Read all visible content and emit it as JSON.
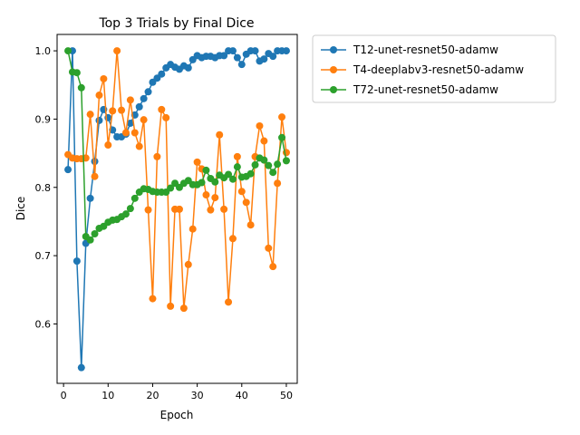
{
  "chart_data": {
    "type": "line",
    "title": "Top 3 Trials by Final Dice",
    "xlabel": "Epoch",
    "ylabel": "Dice",
    "xlim": [
      -1.45,
      52.45
    ],
    "ylim": [
      0.513,
      1.024
    ],
    "xticks": [
      0,
      10,
      20,
      30,
      40,
      50
    ],
    "yticks": [
      0.6,
      0.7,
      0.8,
      0.9,
      1.0
    ],
    "xtick_labels": [
      "0",
      "10",
      "20",
      "30",
      "40",
      "50"
    ],
    "ytick_labels": [
      "0.6",
      "0.7",
      "0.8",
      "0.9",
      "1.0"
    ],
    "grid": false,
    "legend_position": "outside upper right",
    "x": [
      1,
      2,
      3,
      4,
      5,
      6,
      7,
      8,
      9,
      10,
      11,
      12,
      13,
      14,
      15,
      16,
      17,
      18,
      19,
      20,
      21,
      22,
      23,
      24,
      25,
      26,
      27,
      28,
      29,
      30,
      31,
      32,
      33,
      34,
      35,
      36,
      37,
      38,
      39,
      40,
      41,
      42,
      43,
      44,
      45,
      46,
      47,
      48,
      49,
      50
    ],
    "series": [
      {
        "name": "T12-unet-resnet50-adamw",
        "color": "#1f77b4",
        "values": [
          0.826,
          1.0,
          0.692,
          0.536,
          0.718,
          0.784,
          0.838,
          0.898,
          0.914,
          0.902,
          0.884,
          0.874,
          0.874,
          0.878,
          0.894,
          0.906,
          0.918,
          0.93,
          0.94,
          0.954,
          0.96,
          0.966,
          0.975,
          0.98,
          0.976,
          0.973,
          0.978,
          0.975,
          0.987,
          0.993,
          0.99,
          0.992,
          0.992,
          0.99,
          0.993,
          0.993,
          1.0,
          1.0,
          0.99,
          0.98,
          0.995,
          1.0,
          1.0,
          0.985,
          0.988,
          0.996,
          0.992,
          1.0,
          1.0,
          1.0
        ]
      },
      {
        "name": "T4-deeplabv3-resnet50-adamw",
        "color": "#ff7f0e",
        "values": [
          0.848,
          0.843,
          0.842,
          0.842,
          0.843,
          0.907,
          0.816,
          0.935,
          0.959,
          0.862,
          0.912,
          1.0,
          0.913,
          0.88,
          0.928,
          0.88,
          0.86,
          0.899,
          0.767,
          0.637,
          0.845,
          0.914,
          0.902,
          0.626,
          0.768,
          0.768,
          0.623,
          0.687,
          0.739,
          0.837,
          0.827,
          0.789,
          0.767,
          0.785,
          0.877,
          0.768,
          0.632,
          0.725,
          0.845,
          0.794,
          0.778,
          0.745,
          0.845,
          0.89,
          0.868,
          0.711,
          0.684,
          0.806,
          0.903,
          0.851
        ]
      },
      {
        "name": "T72-unet-resnet50-adamw",
        "color": "#2ca02c",
        "values": [
          1.0,
          0.969,
          0.968,
          0.946,
          0.728,
          0.723,
          0.732,
          0.74,
          0.743,
          0.749,
          0.752,
          0.753,
          0.757,
          0.761,
          0.769,
          0.784,
          0.793,
          0.798,
          0.797,
          0.794,
          0.793,
          0.793,
          0.793,
          0.799,
          0.806,
          0.8,
          0.806,
          0.81,
          0.804,
          0.804,
          0.807,
          0.825,
          0.813,
          0.808,
          0.818,
          0.814,
          0.819,
          0.812,
          0.83,
          0.815,
          0.816,
          0.82,
          0.833,
          0.843,
          0.84,
          0.832,
          0.822,
          0.834,
          0.873,
          0.839
        ]
      }
    ]
  }
}
